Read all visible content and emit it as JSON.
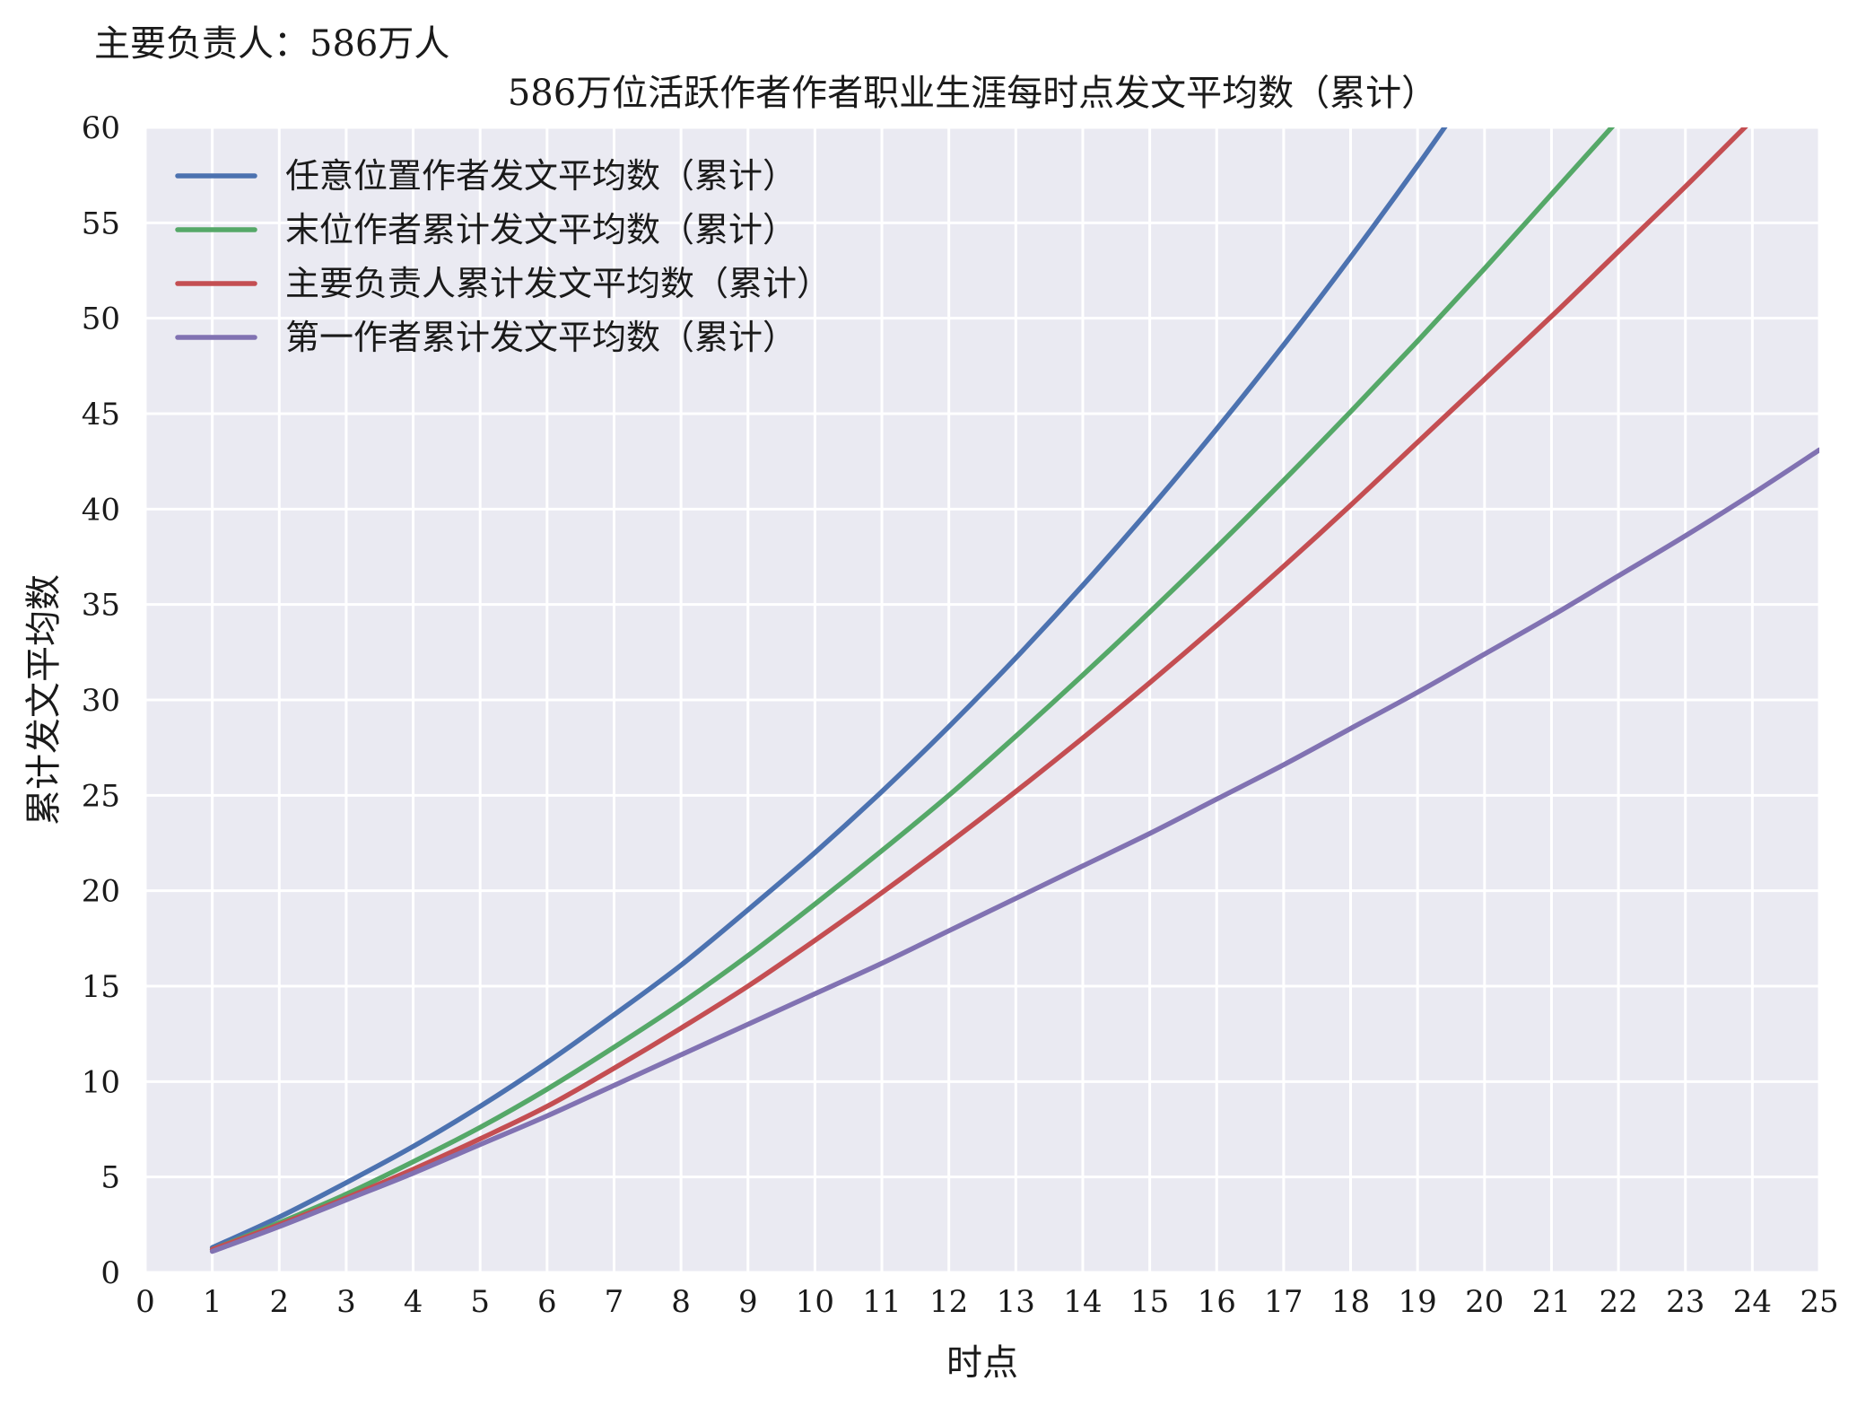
{
  "header": {
    "subtitle": "主要负责人：586万人"
  },
  "chart_data": {
    "type": "line",
    "title": "586万位活跃作者作者职业生涯每时点发文平均数（累计）",
    "xlabel": "时点",
    "ylabel": "累计发文平均数",
    "xlim": [
      0,
      25
    ],
    "ylim": [
      0,
      60
    ],
    "xticks": [
      0,
      1,
      2,
      3,
      4,
      5,
      6,
      7,
      8,
      9,
      10,
      11,
      12,
      13,
      14,
      15,
      16,
      17,
      18,
      19,
      20,
      21,
      22,
      23,
      24,
      25
    ],
    "yticks": [
      0,
      5,
      10,
      15,
      20,
      25,
      30,
      35,
      40,
      45,
      50,
      55,
      60
    ],
    "grid": true,
    "legend_position": "top-left",
    "background_color": "#eaeaf2",
    "x": [
      1,
      2,
      3,
      4,
      5,
      6,
      7,
      8,
      9,
      10,
      11,
      12,
      13,
      14,
      15,
      16,
      17,
      18,
      19,
      20,
      21,
      22,
      23,
      24,
      25
    ],
    "series": [
      {
        "name": "任意位置作者发文平均数（累计）",
        "color": "#4c72b0",
        "values": [
          1.3,
          2.9,
          4.7,
          6.6,
          8.7,
          11.0,
          13.5,
          16.1,
          19.0,
          22.0,
          25.2,
          28.6,
          32.2,
          36.0,
          40.0,
          44.2,
          48.6,
          53.2,
          58.0,
          63.0,
          null,
          null,
          null,
          null,
          null
        ]
      },
      {
        "name": "末位作者累计发文平均数（累计）",
        "color": "#55a868",
        "values": [
          1.2,
          2.6,
          4.1,
          5.8,
          7.6,
          9.6,
          11.8,
          14.1,
          16.6,
          19.3,
          22.1,
          25.0,
          28.1,
          31.3,
          34.6,
          38.0,
          41.5,
          45.1,
          48.8,
          52.6,
          56.5,
          60.4,
          64.3,
          null,
          null
        ]
      },
      {
        "name": "主要负责人累计发文平均数（累计）",
        "color": "#c44e52",
        "values": [
          1.2,
          2.5,
          3.9,
          5.4,
          7.0,
          8.7,
          10.7,
          12.8,
          15.0,
          17.4,
          19.9,
          22.5,
          25.2,
          28.0,
          30.9,
          33.9,
          37.0,
          40.2,
          43.5,
          46.8,
          50.1,
          53.5,
          56.9,
          60.4,
          null
        ]
      },
      {
        "name": "第一作者累计发文平均数（累计）",
        "color": "#8172b2",
        "values": [
          1.1,
          2.4,
          3.8,
          5.2,
          6.7,
          8.2,
          9.8,
          11.4,
          13.0,
          14.6,
          16.2,
          17.9,
          19.6,
          21.3,
          23.0,
          24.8,
          26.6,
          28.5,
          30.4,
          32.4,
          34.4,
          36.5,
          38.6,
          40.8,
          43.1
        ]
      }
    ]
  }
}
